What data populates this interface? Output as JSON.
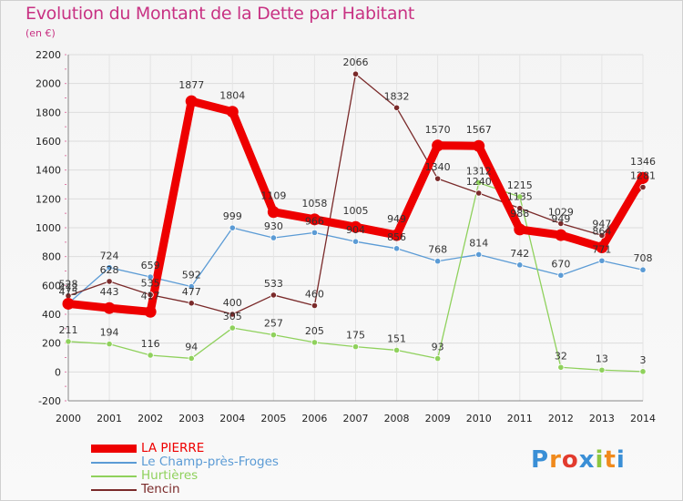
{
  "header": {
    "title": "Evolution du Montant de la Dette par Habitant",
    "subtitle": "(en €)"
  },
  "logo": {
    "text": "Proxiti",
    "colors": [
      "#3a8fd6",
      "#f08a1c",
      "#e23b2e",
      "#3a8fd6",
      "#8dc63f",
      "#f08a1c",
      "#3a8fd6"
    ]
  },
  "chart_data": {
    "type": "line",
    "title": "Evolution du Montant de la Dette par Habitant",
    "subtitle": "(en €)",
    "x": [
      "2000",
      "2001",
      "2002",
      "2003",
      "2004",
      "2005",
      "2006",
      "2007",
      "2008",
      "2009",
      "2010",
      "2011",
      "2012",
      "2013",
      "2014"
    ],
    "ylim": [
      -200,
      2200
    ],
    "yticks": [
      -200,
      0,
      200,
      400,
      600,
      800,
      1000,
      1200,
      1400,
      1600,
      1800,
      2000,
      2200
    ],
    "grid": true,
    "legend_position": "bottom-left",
    "series": [
      {
        "name": "LA PIERRE",
        "color": "#ee0000",
        "values": [
          473,
          443,
          417,
          1877,
          1804,
          1109,
          1058,
          1005,
          949,
          1570,
          1567,
          988,
          949,
          864,
          1346
        ],
        "labels": [
          "473",
          "443",
          "417",
          "1877",
          "1804",
          "1109",
          "1058",
          "1005",
          "949",
          "1570",
          "1567",
          "988",
          "949",
          "864",
          "1346"
        ]
      },
      {
        "name": "Le Champ-près-Froges",
        "color": "#5b9bd5",
        "values": [
          475,
          724,
          659,
          592,
          999,
          930,
          966,
          904,
          856,
          768,
          814,
          742,
          670,
          771,
          708
        ],
        "labels": [
          "475",
          "724",
          "659",
          "592",
          "999",
          "930",
          "966",
          "904",
          "856",
          "768",
          "814",
          "742",
          "670",
          "771",
          "708"
        ]
      },
      {
        "name": "Hurtières",
        "color": "#8fd15c",
        "values": [
          211,
          194,
          116,
          94,
          305,
          257,
          205,
          175,
          151,
          93,
          1312,
          1215,
          32,
          13,
          3
        ],
        "labels": [
          "211",
          "194",
          "116",
          "94",
          "305",
          "257",
          "205",
          "175",
          "151",
          "93",
          "1312",
          "1215",
          "32",
          "13",
          "3"
        ]
      },
      {
        "name": "Tencin",
        "color": "#7a2a2a",
        "values": [
          528,
          628,
          535,
          477,
          400,
          533,
          460,
          2066,
          1832,
          1340,
          1240,
          1135,
          1029,
          947,
          1281
        ],
        "labels": [
          "528",
          "628",
          "535",
          "477",
          "400",
          "533",
          "460",
          "2066",
          "1832",
          "1340",
          "1240",
          "1135",
          "1029",
          "947",
          "1281"
        ]
      }
    ]
  }
}
